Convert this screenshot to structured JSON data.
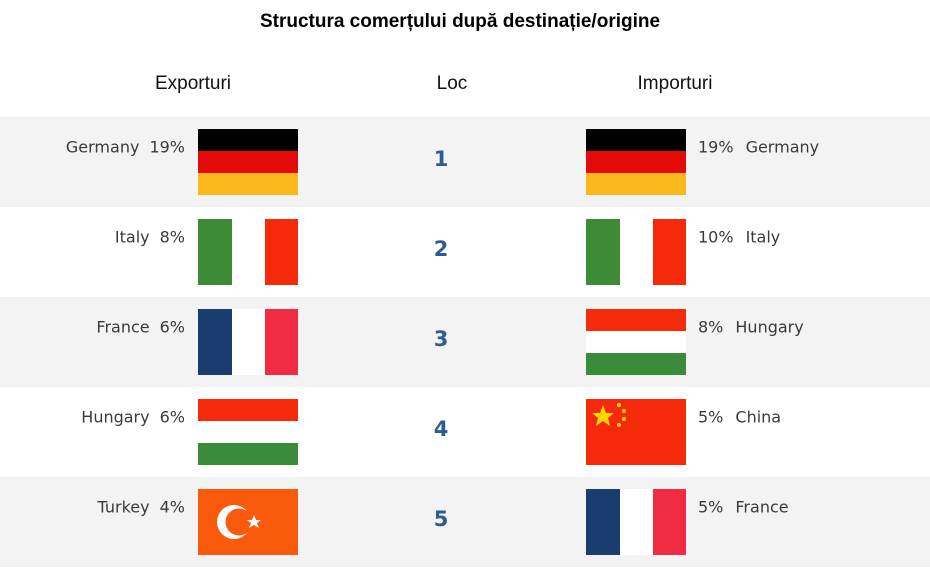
{
  "title": "Structura comerțului după destinație/origine",
  "headers": [
    "Exporturi",
    "Loc",
    "Importuri"
  ],
  "rows": [
    {
      "rank": "1",
      "export_country": "Germany",
      "export_share": "19%",
      "import_share": "19%",
      "import_country": "Germany"
    },
    {
      "rank": "2",
      "export_country": "Italy",
      "export_share": "8%",
      "import_share": "10%",
      "import_country": "Italy"
    },
    {
      "rank": "3",
      "export_country": "France",
      "export_share": "6%",
      "import_share": "8%",
      "import_country": "Hungary"
    },
    {
      "rank": "4",
      "export_country": "Hungary",
      "export_share": "6%",
      "import_share": "5%",
      "import_country": "China"
    },
    {
      "rank": "5",
      "export_country": "Turkey",
      "export_share": "4%",
      "import_share": "5%",
      "import_country": "France"
    }
  ]
}
